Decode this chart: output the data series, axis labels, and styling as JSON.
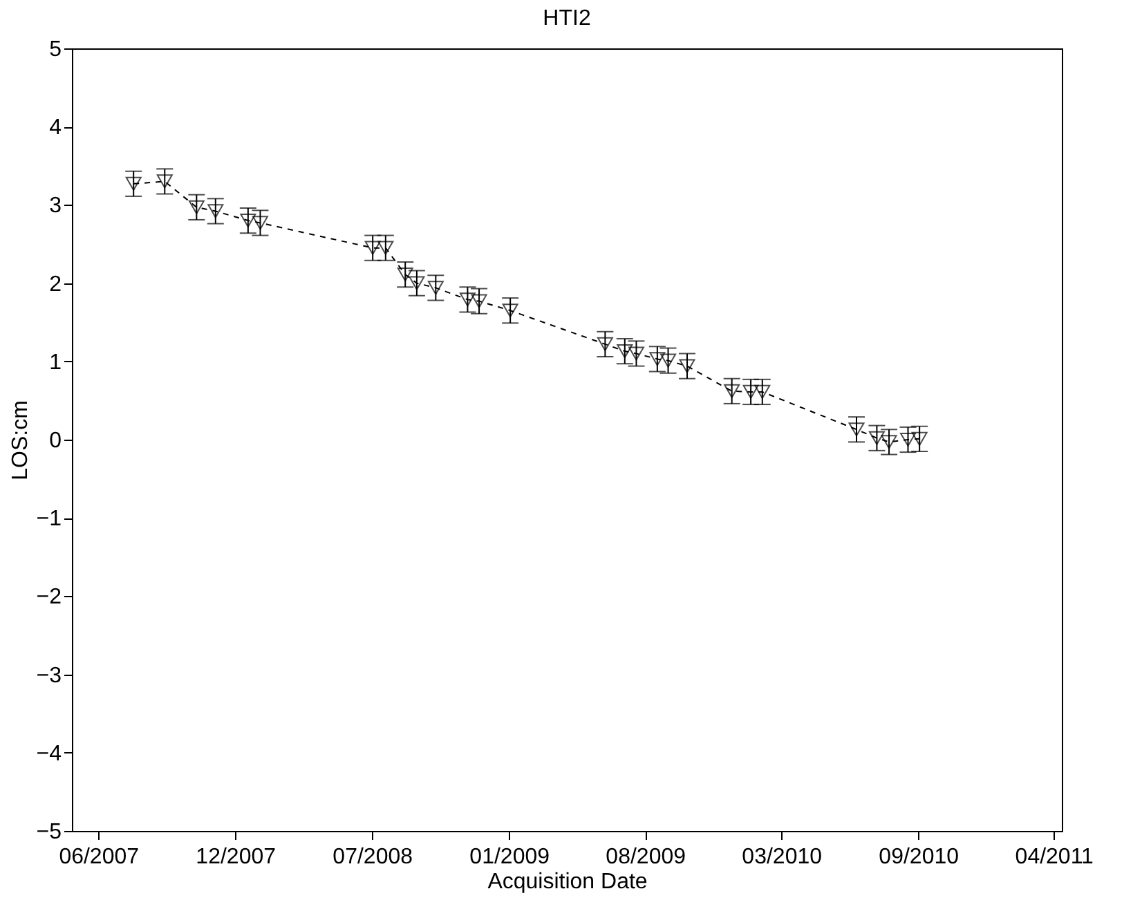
{
  "chart_data": {
    "type": "line",
    "title": "HTI2",
    "xlabel": "Acquisition Date",
    "ylabel": "LOS:cm",
    "x": [
      "2007-07-27",
      "2007-09-11",
      "2007-10-28",
      "2007-11-25",
      "2008-01-12",
      "2008-01-30",
      "2008-07-14",
      "2008-08-02",
      "2008-08-31",
      "2008-09-17",
      "2008-10-15",
      "2008-12-01",
      "2008-12-18",
      "2009-02-02",
      "2009-06-22",
      "2009-07-21",
      "2009-08-07",
      "2009-09-07",
      "2009-09-23",
      "2009-10-21",
      "2009-12-26",
      "2010-01-23",
      "2010-02-09",
      "2010-06-28",
      "2010-07-28",
      "2010-08-15",
      "2010-09-12",
      "2010-09-29"
    ],
    "series": [
      {
        "color": "#000000",
        "values": [
          3.27,
          3.3,
          2.97,
          2.92,
          2.8,
          2.77,
          2.45,
          2.45,
          2.11,
          2.0,
          1.94,
          1.79,
          1.77,
          1.65,
          1.22,
          1.13,
          1.1,
          1.03,
          1.01,
          0.94,
          0.62,
          0.61,
          0.61,
          0.13,
          0.02,
          -0.03,
          0.0,
          0.01
        ],
        "errors": [
          0.16,
          0.16,
          0.16,
          0.16,
          0.16,
          0.16,
          0.16,
          0.16,
          0.16,
          0.16,
          0.16,
          0.16,
          0.16,
          0.16,
          0.16,
          0.16,
          0.16,
          0.16,
          0.16,
          0.16,
          0.16,
          0.16,
          0.16,
          0.16,
          0.16,
          0.16,
          0.16,
          0.16
        ]
      }
    ],
    "marker": "triangle",
    "line_style": "dashed",
    "grid": false,
    "xlim": [
      "2007-04-27",
      "2011-04-27"
    ],
    "xticks": [
      {
        "value": "2007-06-05",
        "label": "06/2007"
      },
      {
        "value": "2007-12-24",
        "label": "12/2007"
      },
      {
        "value": "2008-07-13",
        "label": "07/2008"
      },
      {
        "value": "2009-01-31",
        "label": "01/2009"
      },
      {
        "value": "2009-08-20",
        "label": "08/2009"
      },
      {
        "value": "2010-03-09",
        "label": "03/2010"
      },
      {
        "value": "2010-09-27",
        "label": "09/2010"
      },
      {
        "value": "2011-04-15",
        "label": "04/2011"
      }
    ],
    "ylim": [
      -5,
      5
    ],
    "yticks": [
      -5,
      -4,
      -3,
      -2,
      -1,
      0,
      1,
      2,
      3,
      4,
      5
    ]
  }
}
